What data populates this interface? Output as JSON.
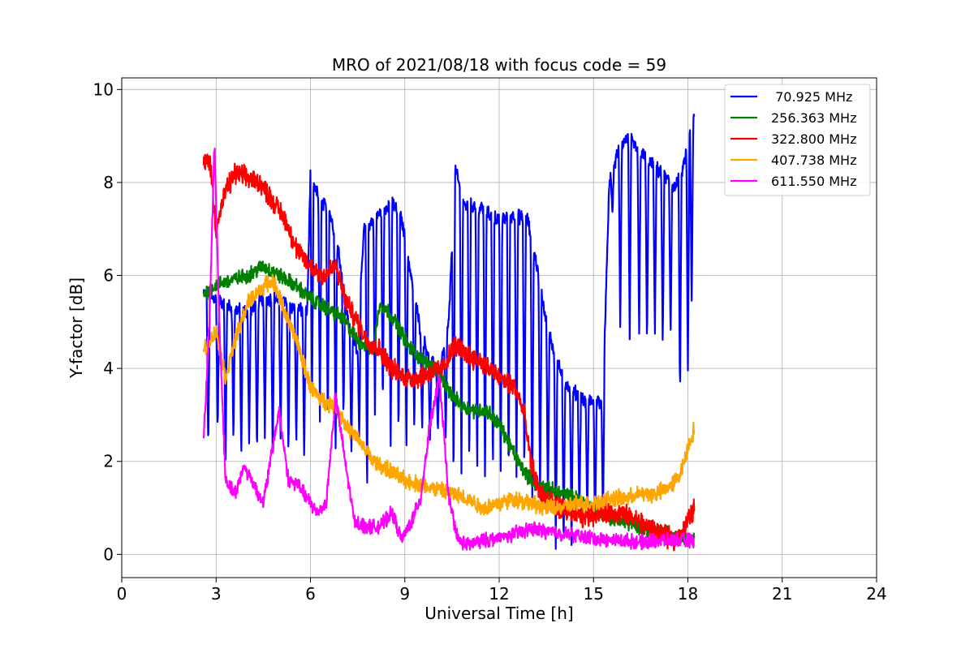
{
  "chart_data": {
    "type": "line",
    "title": "MRO of 2021/08/18 with focus code = 59",
    "xlabel": "Universal Time [h]",
    "ylabel": "Y-factor [dB]",
    "xlim": [
      0,
      24
    ],
    "ylim": [
      -0.5,
      10.25
    ],
    "xticks": [
      0,
      3,
      6,
      9,
      12,
      15,
      18,
      21,
      24
    ],
    "yticks": [
      0,
      2,
      4,
      6,
      8,
      10
    ],
    "xtick_labels": [
      "0",
      "3",
      "6",
      "9",
      "12",
      "15",
      "18",
      "21",
      "24"
    ],
    "ytick_labels": [
      "0",
      "2",
      "4",
      "6",
      "8",
      "10"
    ],
    "grid": true,
    "legend_position": "top-right",
    "series": [
      {
        "name": " 70.925 MHz",
        "color": "#0000ff",
        "base": [
          [
            2.6,
            5.6
          ],
          [
            3.0,
            5.5
          ],
          [
            3.5,
            5.3
          ],
          [
            4.0,
            5.2
          ],
          [
            4.5,
            5.5
          ],
          [
            5.0,
            5.5
          ],
          [
            5.5,
            5.3
          ],
          [
            5.9,
            5.2
          ],
          [
            6.0,
            8.2
          ],
          [
            6.3,
            7.6
          ],
          [
            6.6,
            7.4
          ],
          [
            6.9,
            6.5
          ],
          [
            7.2,
            5.0
          ],
          [
            7.5,
            4.4
          ],
          [
            7.7,
            7.0
          ],
          [
            8.0,
            7.2
          ],
          [
            8.3,
            7.4
          ],
          [
            8.6,
            7.6
          ],
          [
            8.9,
            7.2
          ],
          [
            9.2,
            6.0
          ],
          [
            9.5,
            4.8
          ],
          [
            9.8,
            4.2
          ],
          [
            10.1,
            3.9
          ],
          [
            10.4,
            5.0
          ],
          [
            10.6,
            8.3
          ],
          [
            10.9,
            7.5
          ],
          [
            11.3,
            7.5
          ],
          [
            11.7,
            7.3
          ],
          [
            12.0,
            7.2
          ],
          [
            12.5,
            7.3
          ],
          [
            12.9,
            7.2
          ],
          [
            13.2,
            6.2
          ],
          [
            13.5,
            5.0
          ],
          [
            13.8,
            4.2
          ],
          [
            14.1,
            3.7
          ],
          [
            14.4,
            3.5
          ],
          [
            14.7,
            3.3
          ],
          [
            15.0,
            3.3
          ],
          [
            15.3,
            3.3
          ],
          [
            15.5,
            8.0
          ],
          [
            15.8,
            8.7
          ],
          [
            16.1,
            9.0
          ],
          [
            16.4,
            8.7
          ],
          [
            16.7,
            8.5
          ],
          [
            17.0,
            8.3
          ],
          [
            17.3,
            8.1
          ],
          [
            17.6,
            7.9
          ],
          [
            17.8,
            8.2
          ],
          [
            18.0,
            8.8
          ],
          [
            18.2,
            9.4
          ]
        ],
        "noise": 0.12,
        "dips": [
          [
            2.75,
            2.2
          ],
          [
            3.05,
            2.6
          ],
          [
            3.3,
            1.9
          ],
          [
            3.55,
            2.4
          ],
          [
            3.8,
            2.0
          ],
          [
            4.05,
            2.3
          ],
          [
            4.3,
            2.1
          ],
          [
            4.55,
            2.5
          ],
          [
            4.8,
            2.0
          ],
          [
            5.05,
            2.4
          ],
          [
            5.3,
            2.1
          ],
          [
            5.55,
            2.3
          ],
          [
            5.8,
            2.0
          ],
          [
            6.05,
            3.2
          ],
          [
            6.3,
            2.8
          ],
          [
            6.55,
            2.6
          ],
          [
            6.8,
            2.2
          ],
          [
            7.05,
            2.9
          ],
          [
            7.3,
            2.1
          ],
          [
            7.55,
            2.4
          ],
          [
            7.8,
            1.1
          ],
          [
            8.05,
            2.9
          ],
          [
            8.3,
            3.1
          ],
          [
            8.55,
            2.3
          ],
          [
            8.8,
            2.4
          ],
          [
            9.05,
            2.2
          ],
          [
            9.3,
            2.6
          ],
          [
            9.55,
            2.6
          ],
          [
            9.8,
            2.4
          ],
          [
            10.05,
            2.6
          ],
          [
            10.3,
            2.5
          ],
          [
            10.55,
            1.4
          ],
          [
            10.8,
            1.6
          ],
          [
            11.05,
            1.8
          ],
          [
            11.3,
            1.6
          ],
          [
            11.55,
            1.4
          ],
          [
            11.8,
            1.6
          ],
          [
            12.05,
            1.7
          ],
          [
            12.3,
            1.5
          ],
          [
            12.55,
            1.6
          ],
          [
            12.8,
            1.6
          ],
          [
            13.05,
            1.0
          ],
          [
            13.3,
            1.1
          ],
          [
            13.55,
            0.9
          ],
          [
            13.8,
            0.0
          ],
          [
            14.05,
            0.1
          ],
          [
            14.3,
            0.2
          ],
          [
            14.55,
            0.8
          ],
          [
            14.8,
            0.8
          ],
          [
            15.05,
            0.6
          ],
          [
            15.3,
            0.7
          ],
          [
            15.6,
            7.3
          ],
          [
            15.85,
            4.8
          ],
          [
            16.15,
            4.6
          ],
          [
            16.45,
            4.7
          ],
          [
            16.7,
            4.4
          ],
          [
            16.95,
            4.6
          ],
          [
            17.2,
            4.4
          ],
          [
            17.45,
            4.6
          ],
          [
            17.75,
            3.3
          ],
          [
            18.0,
            3.9
          ],
          [
            18.12,
            5.3
          ]
        ]
      },
      {
        "name": "256.363 MHz",
        "color": "#008000",
        "base": [
          [
            2.6,
            5.6
          ],
          [
            3.0,
            5.8
          ],
          [
            3.5,
            5.9
          ],
          [
            4.0,
            6.0
          ],
          [
            4.5,
            6.2
          ],
          [
            5.0,
            6.0
          ],
          [
            5.5,
            5.8
          ],
          [
            6.0,
            5.5
          ],
          [
            6.5,
            5.3
          ],
          [
            7.0,
            5.1
          ],
          [
            7.5,
            4.6
          ],
          [
            8.0,
            4.4
          ],
          [
            8.2,
            5.4
          ],
          [
            8.5,
            5.2
          ],
          [
            8.8,
            4.9
          ],
          [
            9.1,
            4.5
          ],
          [
            9.5,
            4.2
          ],
          [
            10.0,
            4.0
          ],
          [
            10.4,
            3.5
          ],
          [
            10.8,
            3.2
          ],
          [
            11.2,
            3.1
          ],
          [
            11.6,
            3.1
          ],
          [
            12.0,
            2.8
          ],
          [
            12.3,
            2.4
          ],
          [
            12.6,
            2.0
          ],
          [
            12.9,
            1.7
          ],
          [
            13.2,
            1.5
          ],
          [
            13.6,
            1.4
          ],
          [
            14.0,
            1.3
          ],
          [
            14.5,
            1.2
          ],
          [
            15.0,
            1.0
          ],
          [
            15.5,
            0.8
          ],
          [
            16.0,
            0.7
          ],
          [
            16.5,
            0.6
          ],
          [
            17.0,
            0.5
          ],
          [
            17.5,
            0.45
          ],
          [
            18.0,
            0.35
          ],
          [
            18.2,
            0.3
          ]
        ],
        "noise": 0.13,
        "dips": []
      },
      {
        "name": "322.800 MHz",
        "color": "#ff0000",
        "base": [
          [
            2.6,
            8.4
          ],
          [
            2.8,
            8.5
          ],
          [
            3.0,
            7.0
          ],
          [
            3.3,
            7.8
          ],
          [
            3.6,
            8.2
          ],
          [
            4.0,
            8.1
          ],
          [
            4.4,
            8.0
          ],
          [
            4.8,
            7.6
          ],
          [
            5.2,
            7.2
          ],
          [
            5.6,
            6.5
          ],
          [
            6.0,
            6.2
          ],
          [
            6.4,
            6.0
          ],
          [
            6.8,
            6.2
          ],
          [
            7.1,
            5.5
          ],
          [
            7.4,
            5.1
          ],
          [
            7.8,
            4.6
          ],
          [
            8.2,
            4.4
          ],
          [
            8.6,
            4.0
          ],
          [
            9.0,
            3.8
          ],
          [
            9.4,
            3.8
          ],
          [
            9.8,
            3.9
          ],
          [
            10.2,
            4.0
          ],
          [
            10.6,
            4.5
          ],
          [
            11.0,
            4.3
          ],
          [
            11.5,
            4.1
          ],
          [
            12.0,
            3.8
          ],
          [
            12.5,
            3.6
          ],
          [
            12.8,
            3.0
          ],
          [
            13.0,
            2.0
          ],
          [
            13.3,
            1.3
          ],
          [
            13.7,
            1.1
          ],
          [
            14.2,
            0.9
          ],
          [
            14.7,
            0.8
          ],
          [
            15.2,
            0.9
          ],
          [
            15.7,
            0.9
          ],
          [
            16.2,
            0.8
          ],
          [
            16.7,
            0.6
          ],
          [
            17.2,
            0.4
          ],
          [
            17.6,
            0.3
          ],
          [
            18.0,
            0.7
          ],
          [
            18.2,
            1.0
          ]
        ],
        "noise": 0.18,
        "dips": []
      },
      {
        "name": "407.738 MHz",
        "color": "#ffa500",
        "base": [
          [
            2.6,
            4.4
          ],
          [
            2.8,
            4.6
          ],
          [
            3.0,
            4.8
          ],
          [
            3.3,
            3.8
          ],
          [
            3.6,
            4.6
          ],
          [
            4.0,
            5.4
          ],
          [
            4.4,
            5.7
          ],
          [
            4.8,
            5.9
          ],
          [
            5.2,
            5.2
          ],
          [
            5.6,
            4.5
          ],
          [
            6.0,
            3.6
          ],
          [
            6.4,
            3.3
          ],
          [
            6.8,
            3.2
          ],
          [
            7.2,
            2.7
          ],
          [
            7.6,
            2.4
          ],
          [
            8.0,
            2.0
          ],
          [
            8.5,
            1.8
          ],
          [
            9.0,
            1.6
          ],
          [
            9.5,
            1.5
          ],
          [
            10.0,
            1.4
          ],
          [
            10.5,
            1.3
          ],
          [
            11.0,
            1.2
          ],
          [
            11.5,
            1.0
          ],
          [
            12.0,
            1.1
          ],
          [
            12.5,
            1.2
          ],
          [
            13.0,
            1.1
          ],
          [
            13.5,
            1.0
          ],
          [
            14.0,
            1.0
          ],
          [
            14.5,
            1.1
          ],
          [
            15.0,
            1.1
          ],
          [
            15.5,
            1.2
          ],
          [
            16.0,
            1.2
          ],
          [
            16.5,
            1.3
          ],
          [
            17.0,
            1.3
          ],
          [
            17.5,
            1.5
          ],
          [
            17.8,
            1.8
          ],
          [
            18.0,
            2.3
          ],
          [
            18.2,
            2.7
          ]
        ],
        "noise": 0.14,
        "dips": []
      },
      {
        "name": "611.550 MHz",
        "color": "#ff00ff",
        "base": [
          [
            2.6,
            2.4
          ],
          [
            2.8,
            5.2
          ],
          [
            2.95,
            8.9
          ],
          [
            3.1,
            5.0
          ],
          [
            3.3,
            1.6
          ],
          [
            3.6,
            1.3
          ],
          [
            3.9,
            1.9
          ],
          [
            4.2,
            1.5
          ],
          [
            4.5,
            1.1
          ],
          [
            4.8,
            2.3
          ],
          [
            5.0,
            3.1
          ],
          [
            5.3,
            1.6
          ],
          [
            5.6,
            1.5
          ],
          [
            5.9,
            1.2
          ],
          [
            6.2,
            0.9
          ],
          [
            6.5,
            1.1
          ],
          [
            6.8,
            3.4
          ],
          [
            7.1,
            2.0
          ],
          [
            7.4,
            0.7
          ],
          [
            7.8,
            0.6
          ],
          [
            8.2,
            0.6
          ],
          [
            8.6,
            0.9
          ],
          [
            8.9,
            0.3
          ],
          [
            9.2,
            0.7
          ],
          [
            9.5,
            1.2
          ],
          [
            9.8,
            2.8
          ],
          [
            10.1,
            3.8
          ],
          [
            10.4,
            1.2
          ],
          [
            10.7,
            0.3
          ],
          [
            11.0,
            0.2
          ],
          [
            11.5,
            0.3
          ],
          [
            12.0,
            0.35
          ],
          [
            12.5,
            0.45
          ],
          [
            13.0,
            0.55
          ],
          [
            13.5,
            0.5
          ],
          [
            14.0,
            0.45
          ],
          [
            14.5,
            0.4
          ],
          [
            15.0,
            0.35
          ],
          [
            15.5,
            0.3
          ],
          [
            16.0,
            0.3
          ],
          [
            16.5,
            0.25
          ],
          [
            17.0,
            0.3
          ],
          [
            17.5,
            0.3
          ],
          [
            18.0,
            0.3
          ],
          [
            18.2,
            0.3
          ]
        ],
        "noise": 0.12,
        "dips": []
      }
    ]
  }
}
